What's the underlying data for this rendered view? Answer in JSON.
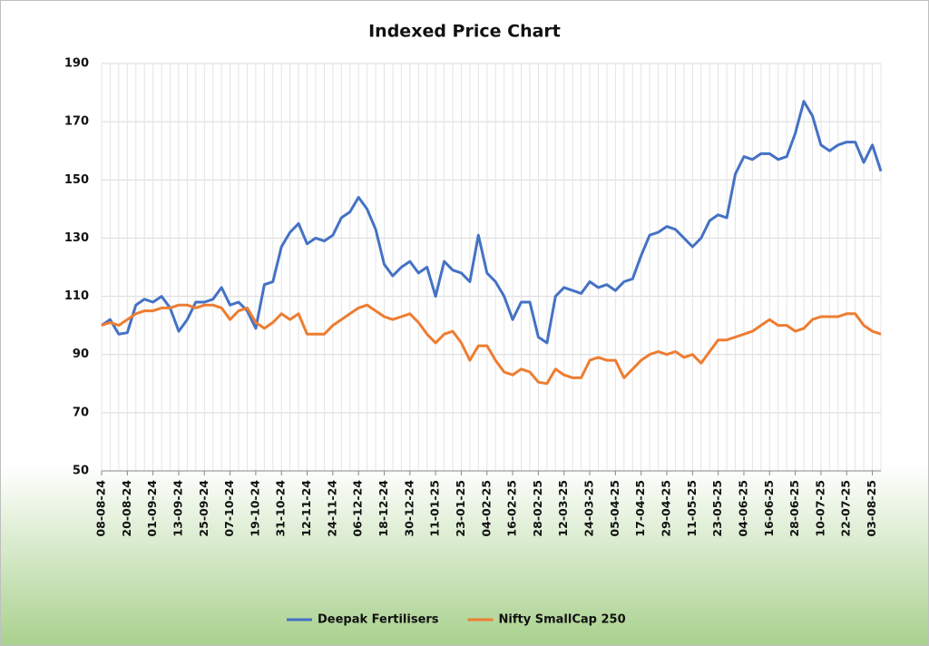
{
  "chart_data": {
    "type": "line",
    "title": "Indexed Price Chart",
    "categories": [
      "08-08-24",
      null,
      null,
      "20-08-24",
      null,
      null,
      "01-09-24",
      null,
      null,
      "13-09-24",
      null,
      null,
      "25-09-24",
      null,
      null,
      "07-10-24",
      null,
      null,
      "19-10-24",
      null,
      null,
      "31-10-24",
      null,
      null,
      "12-11-24",
      null,
      null,
      "24-11-24",
      null,
      null,
      "06-12-24",
      null,
      null,
      "18-12-24",
      null,
      null,
      "30-12-24",
      null,
      null,
      "11-01-25",
      null,
      null,
      "23-01-25",
      null,
      null,
      "04-02-25",
      null,
      null,
      "16-02-25",
      null,
      null,
      "28-02-25",
      null,
      null,
      "12-03-25",
      null,
      null,
      "24-03-25",
      null,
      null,
      "05-04-25",
      null,
      null,
      "17-04-25",
      null,
      null,
      "29-04-25",
      null,
      null,
      "11-05-25",
      null,
      null,
      "23-05-25",
      null,
      null,
      "04-06-25",
      null,
      null,
      "16-06-25",
      null,
      null,
      "28-06-25",
      null,
      null,
      "10-07-25",
      null,
      null,
      "22-07-25",
      null,
      null,
      "03-08-25",
      null
    ],
    "series": [
      {
        "name": "Deepak Fertilisers",
        "color": "#4472c4",
        "values": [
          100,
          102,
          97,
          97.5,
          107,
          109,
          108,
          110,
          106,
          98,
          102,
          108,
          108,
          109,
          113,
          107,
          108,
          105,
          99,
          114,
          115,
          127,
          132,
          135,
          128,
          130,
          129,
          131,
          137,
          139,
          144,
          140,
          133,
          121,
          117,
          120,
          122,
          118,
          120,
          110,
          122,
          119,
          118,
          115,
          131,
          118,
          115,
          110,
          102,
          108,
          108,
          96,
          94,
          110,
          113,
          112,
          111,
          115,
          113,
          114,
          112,
          115,
          116,
          124,
          131,
          132,
          134,
          133,
          130,
          127,
          130,
          136,
          138,
          137,
          152,
          158,
          157,
          159,
          159,
          157,
          158,
          166,
          177,
          172,
          162,
          160,
          162,
          163,
          163,
          156,
          162,
          153
        ]
      },
      {
        "name": "Nifty SmallCap 250",
        "color": "#ed7d31",
        "values": [
          100,
          101,
          100,
          102,
          104,
          105,
          105,
          106,
          106,
          107,
          107,
          106,
          107,
          107,
          106,
          102,
          105,
          106,
          101,
          99,
          101,
          104,
          102,
          104,
          97,
          97,
          97,
          100,
          102,
          104,
          106,
          107,
          105,
          103,
          102,
          103,
          104,
          101,
          97,
          94,
          97,
          98,
          94,
          88,
          93,
          93,
          88,
          84,
          83,
          85,
          84,
          80.5,
          80,
          85,
          83,
          82,
          82,
          88,
          89,
          88,
          88,
          82,
          85,
          88,
          90,
          91,
          90,
          91,
          89,
          90,
          87,
          91,
          95,
          95,
          96,
          97,
          98,
          100,
          102,
          100,
          100,
          98,
          99,
          102,
          103,
          103,
          103,
          104,
          104,
          100,
          98,
          97
        ]
      }
    ],
    "ylim": [
      50,
      190
    ],
    "yticks": [
      50,
      70,
      90,
      110,
      130,
      150,
      170,
      190
    ],
    "grid": true,
    "legend": "bottom"
  }
}
